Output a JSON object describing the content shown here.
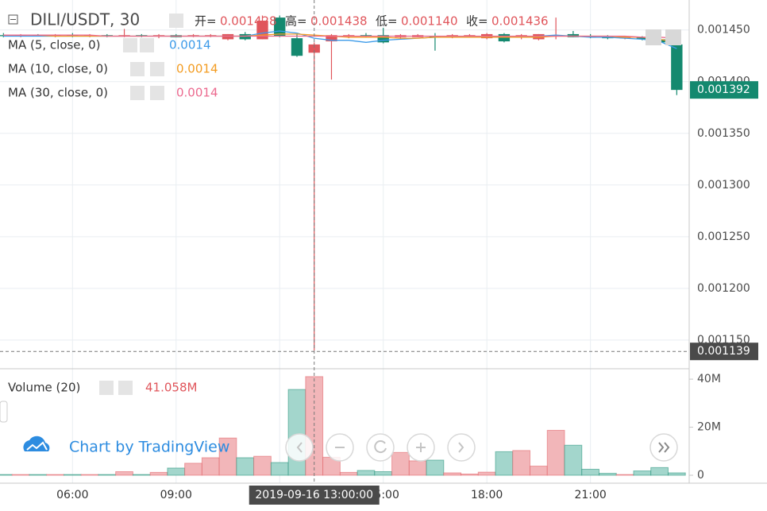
{
  "chart_data": [
    {
      "type": "candlestick",
      "title": "DILI/USDT, 30",
      "ohlc_legend": [
        {
          "label": "开=",
          "value": "0.001428"
        },
        {
          "label": "高=",
          "value": "0.001438"
        },
        {
          "label": "低=",
          "value": "0.001140"
        },
        {
          "label": "收=",
          "value": "0.001436"
        }
      ],
      "up_color": "#e0555b",
      "down_color": "#14896f",
      "x": [
        4,
        4.5,
        5,
        5.5,
        6,
        6.5,
        7,
        7.5,
        8,
        8.5,
        9,
        9.5,
        10,
        10.5,
        11,
        11.5,
        12,
        12.5,
        13,
        13.5,
        14,
        14.5,
        15,
        15.5,
        16,
        16.5,
        17,
        17.5,
        18,
        18.5,
        19,
        19.5,
        20,
        20.5,
        21,
        21.5,
        22,
        22.5,
        23,
        23.5
      ],
      "open": [
        0.001445,
        0.001444,
        0.001445,
        0.001444,
        0.001445,
        0.001444,
        0.001445,
        0.001444,
        0.001445,
        0.001444,
        0.001445,
        0.001444,
        0.001444,
        0.001441,
        0.001446,
        0.001441,
        0.001462,
        0.001442,
        0.001428,
        0.001439,
        0.001444,
        0.001445,
        0.001445,
        0.001443,
        0.001443,
        0.001444,
        0.001443,
        0.001444,
        0.001442,
        0.001446,
        0.001443,
        0.001441,
        0.001444,
        0.001446,
        0.001444,
        0.001443,
        0.001442,
        0.001443,
        0.001441,
        0.001436
      ],
      "high": [
        0.001447,
        0.001446,
        0.001446,
        0.001446,
        0.001447,
        0.001446,
        0.001446,
        0.001451,
        0.001446,
        0.001446,
        0.001446,
        0.001446,
        0.001446,
        0.001446,
        0.001448,
        0.001464,
        0.001464,
        0.001446,
        0.001438,
        0.001446,
        0.001446,
        0.001447,
        0.001452,
        0.001446,
        0.001446,
        0.001447,
        0.001446,
        0.001446,
        0.001447,
        0.001447,
        0.001446,
        0.001446,
        0.001462,
        0.001449,
        0.001446,
        0.001445,
        0.001444,
        0.001444,
        0.001444,
        0.001437
      ],
      "low": [
        0.001443,
        0.001443,
        0.001444,
        0.001443,
        0.001443,
        0.001443,
        0.001443,
        0.001443,
        0.001443,
        0.001442,
        0.001443,
        0.001443,
        0.001443,
        0.00144,
        0.00144,
        0.001441,
        0.001443,
        0.001424,
        0.00114,
        0.001402,
        0.001442,
        0.001443,
        0.001437,
        0.001441,
        0.001443,
        0.00143,
        0.001442,
        0.001443,
        0.001441,
        0.001438,
        0.001441,
        0.00144,
        0.001441,
        0.001443,
        0.001442,
        0.001441,
        0.001441,
        0.00144,
        0.001436,
        0.001387
      ],
      "close": [
        0.001444,
        0.001445,
        0.001444,
        0.001445,
        0.001444,
        0.001445,
        0.001444,
        0.001445,
        0.001444,
        0.001445,
        0.001443,
        0.001445,
        0.001445,
        0.001446,
        0.001441,
        0.001459,
        0.001444,
        0.001425,
        0.001436,
        0.001445,
        0.001445,
        0.001444,
        0.001438,
        0.001445,
        0.001445,
        0.001443,
        0.001445,
        0.001445,
        0.001446,
        0.001439,
        0.001445,
        0.001446,
        0.001445,
        0.001443,
        0.001443,
        0.001442,
        0.001443,
        0.001441,
        0.001438,
        0.001392
      ],
      "indicators": [
        {
          "name": "MA (5, close, 0)",
          "color": "#3d9be9",
          "value_label": "0.0014",
          "values": [
            0.001444,
            0.001444,
            0.001444,
            0.001444,
            0.001444,
            0.001444,
            0.001444,
            0.001444,
            0.001444,
            0.001444,
            0.001444,
            0.001444,
            0.001444,
            0.001444,
            0.001444,
            0.001447,
            0.001449,
            0.001447,
            0.001442,
            0.00144,
            0.00144,
            0.001438,
            0.00144,
            0.001441,
            0.001442,
            0.001443,
            0.001443,
            0.001443,
            0.001443,
            0.001443,
            0.001443,
            0.001444,
            0.001445,
            0.001444,
            0.001443,
            0.001443,
            0.001442,
            0.001441,
            0.001439,
            0.001432
          ]
        },
        {
          "name": "MA (10, close, 0)",
          "color": "#f39c22",
          "value_label": "0.0014",
          "values": [
            0.001445,
            0.001445,
            0.001445,
            0.001444,
            0.001444,
            0.001444,
            0.001444,
            0.001444,
            0.001444,
            0.001444,
            0.001444,
            0.001444,
            0.001444,
            0.001444,
            0.001444,
            0.001445,
            0.001446,
            0.001446,
            0.001445,
            0.001444,
            0.001443,
            0.001443,
            0.001443,
            0.001442,
            0.001442,
            0.001443,
            0.001443,
            0.001443,
            0.001443,
            0.001443,
            0.001443,
            0.001443,
            0.001444,
            0.001444,
            0.001444,
            0.001444,
            0.001443,
            0.001443,
            0.001441,
            0.001438
          ]
        },
        {
          "name": "MA (30, close, 0)",
          "color": "#ec6a8f",
          "value_label": "0.0014",
          "values": [
            0.001445,
            0.001445,
            0.001445,
            0.001445,
            0.001445,
            0.001445,
            0.001444,
            0.001444,
            0.001444,
            0.001444,
            0.001444,
            0.001444,
            0.001444,
            0.001444,
            0.001444,
            0.001444,
            0.001444,
            0.001444,
            0.001444,
            0.001444,
            0.001444,
            0.001444,
            0.001444,
            0.001444,
            0.001444,
            0.001444,
            0.001444,
            0.001444,
            0.001444,
            0.001444,
            0.001444,
            0.001444,
            0.001444,
            0.001444,
            0.001444,
            0.001444,
            0.001444,
            0.001443,
            0.001443,
            0.001442
          ]
        }
      ],
      "xlim": [
        3.9,
        23.86
      ],
      "xticks": [
        {
          "value": 6,
          "label": "06:00"
        },
        {
          "value": 9,
          "label": "09:00"
        },
        {
          "value": 12,
          "label": "12:00"
        },
        {
          "value": 15,
          "label": "15:00"
        },
        {
          "value": 18,
          "label": "18:00"
        },
        {
          "value": 21,
          "label": "21:00"
        }
      ],
      "ylim": [
        0.001123,
        0.001479
      ],
      "yticks": [
        {
          "value": 0.00115,
          "label": "0.001150"
        },
        {
          "value": 0.0012,
          "label": "0.001200"
        },
        {
          "value": 0.00125,
          "label": "0.001250"
        },
        {
          "value": 0.0013,
          "label": "0.001300"
        },
        {
          "value": 0.00135,
          "label": "0.001350"
        },
        {
          "value": 0.0014,
          "label": "0.001400"
        },
        {
          "value": 0.00145,
          "label": "0.001450"
        }
      ],
      "grid": true,
      "last_price": 0.001392,
      "crosshair": {
        "x": 13,
        "x_label": "2019-09-16 13:00:00",
        "y": 0.001139
      },
      "watermark": "Chart by TradingView"
    },
    {
      "type": "bar",
      "up_color": "#f2b6b9",
      "down_color": "#a3d6cc",
      "series": [
        {
          "name": "Volume (20)",
          "value_label": "41.058M",
          "values": [
            300000,
            300000,
            300000,
            300000,
            300000,
            300000,
            300000,
            1500000,
            300000,
            1200000,
            3000000,
            5000000,
            7300000,
            15500000,
            7300000,
            7900000,
            5300000,
            35700000,
            41058000,
            7500000,
            1200000,
            2000000,
            1500000,
            9500000,
            6000000,
            6300000,
            1000000,
            500000,
            1300000,
            9800000,
            10300000,
            3800000,
            18700000,
            12500000,
            2500000,
            800000,
            300000,
            1800000,
            3200000,
            1000000
          ]
        }
      ],
      "ylim": [
        -3300000,
        44000000
      ],
      "yticks": [
        0,
        {
          "value": 20000000,
          "label": "20M"
        },
        {
          "value": 40000000,
          "label": "40M"
        }
      ]
    }
  ]
}
